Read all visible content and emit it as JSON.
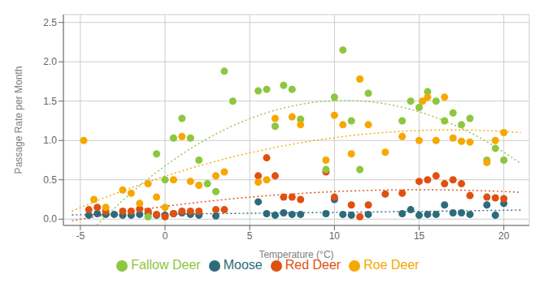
{
  "chart_data": {
    "type": "scatter",
    "title": "",
    "xlabel": "Temperature (°C)",
    "ylabel": "Passage Rate per Month",
    "xlim": [
      -6,
      21.5
    ],
    "ylim": [
      -0.08,
      2.6
    ],
    "xticks": [
      -5,
      0,
      5,
      10,
      15,
      20
    ],
    "yticks": [
      {
        "value": 0.0,
        "label": "0.0"
      },
      0.5,
      {
        "value": 1.0,
        "label": "1.0"
      },
      1.5,
      {
        "value": 2.0,
        "label": "2.0"
      },
      2.5
    ],
    "grid": true,
    "legend": "bottom",
    "trend": {
      "degree": 2,
      "x_range": [
        -5.5,
        21
      ],
      "line_style": "dotted"
    },
    "series": [
      {
        "name": "Moose",
        "color": "#2e6b7a",
        "marker": "circle",
        "x": [
          -4.5,
          -4.0,
          -3.5,
          -3.0,
          -2.5,
          -2.0,
          -1.5,
          -1.0,
          -0.5,
          0.0,
          0.5,
          1.0,
          1.5,
          2.0,
          3.0,
          5.5,
          6.0,
          6.5,
          7.0,
          7.5,
          8.0,
          9.5,
          10.0,
          10.5,
          11.0,
          12.0,
          14.0,
          14.5,
          15.0,
          15.5,
          16.0,
          16.5,
          17.0,
          17.5,
          18.0,
          19.0,
          19.5,
          20.0
        ],
        "values": [
          0.05,
          0.07,
          0.06,
          0.06,
          0.05,
          0.05,
          0.06,
          0.07,
          0.05,
          0.05,
          0.07,
          0.08,
          0.06,
          0.05,
          0.04,
          0.22,
          0.07,
          0.05,
          0.08,
          0.06,
          0.06,
          0.07,
          0.25,
          0.06,
          0.05,
          0.06,
          0.07,
          0.12,
          0.05,
          0.06,
          0.06,
          0.18,
          0.08,
          0.08,
          0.06,
          0.18,
          0.05,
          0.2
        ]
      },
      {
        "name": "Red Deer",
        "color": "#e05010",
        "marker": "circle",
        "x": [
          -4.5,
          -4.0,
          -3.5,
          -2.5,
          -2.0,
          -1.5,
          -1.0,
          -0.5,
          0.0,
          0.5,
          1.0,
          1.5,
          2.0,
          3.0,
          3.5,
          5.5,
          6.0,
          6.5,
          7.0,
          7.5,
          8.0,
          9.5,
          10.0,
          11.0,
          11.5,
          12.0,
          13.0,
          14.0,
          15.0,
          15.5,
          16.0,
          16.5,
          17.0,
          17.5,
          18.0,
          19.0,
          19.5,
          20.0
        ],
        "values": [
          0.12,
          0.15,
          0.1,
          0.1,
          0.1,
          0.13,
          0.1,
          0.06,
          0.03,
          0.07,
          0.1,
          0.1,
          0.1,
          0.12,
          0.12,
          0.55,
          0.78,
          0.55,
          0.28,
          0.28,
          0.25,
          0.6,
          0.28,
          0.18,
          0.03,
          0.18,
          0.32,
          0.33,
          0.48,
          0.5,
          0.55,
          0.45,
          0.5,
          0.45,
          0.3,
          0.28,
          0.27,
          0.26
        ]
      },
      {
        "name": "Fallow Deer",
        "color": "#8dc63f",
        "marker": "circle",
        "x": [
          -1.0,
          -0.5,
          0.0,
          0.5,
          1.0,
          1.5,
          2.0,
          2.5,
          3.0,
          3.5,
          4.0,
          5.5,
          6.0,
          6.5,
          7.0,
          7.5,
          8.0,
          9.5,
          10.0,
          10.5,
          11.0,
          11.5,
          12.0,
          14.0,
          14.5,
          15.0,
          15.5,
          16.0,
          16.5,
          17.0,
          17.5,
          18.0,
          19.0,
          19.5,
          20.0
        ],
        "values": [
          0.03,
          0.83,
          0.5,
          1.03,
          1.28,
          1.03,
          0.75,
          0.45,
          0.35,
          1.88,
          1.5,
          1.63,
          1.65,
          1.18,
          1.7,
          1.65,
          1.27,
          0.63,
          1.55,
          2.15,
          1.25,
          0.63,
          1.6,
          1.25,
          1.5,
          1.42,
          1.62,
          1.5,
          1.25,
          1.35,
          1.2,
          1.28,
          0.75,
          0.9,
          0.75
        ]
      },
      {
        "name": "Roe Deer",
        "color": "#f5a800",
        "marker": "circle",
        "x": [
          -4.8,
          -4.2,
          -3.5,
          -2.5,
          -2.0,
          -1.5,
          -1.0,
          -0.5,
          0.0,
          0.5,
          1.0,
          1.5,
          2.0,
          3.0,
          3.5,
          5.5,
          6.0,
          6.5,
          7.5,
          8.0,
          9.5,
          10.0,
          10.5,
          11.0,
          11.5,
          12.0,
          13.0,
          14.0,
          15.0,
          15.2,
          15.5,
          16.0,
          16.5,
          17.0,
          17.5,
          18.0,
          19.0,
          19.5,
          20.0
        ],
        "values": [
          1.0,
          0.25,
          0.15,
          0.37,
          0.33,
          0.2,
          0.45,
          0.28,
          0.15,
          0.5,
          1.05,
          0.48,
          0.43,
          0.55,
          0.6,
          0.47,
          0.5,
          1.28,
          1.3,
          1.2,
          0.75,
          1.32,
          1.2,
          0.83,
          1.78,
          1.2,
          0.85,
          1.05,
          1.0,
          1.5,
          1.55,
          1.0,
          1.55,
          1.03,
          0.99,
          0.98,
          0.72,
          1.0,
          1.1
        ]
      }
    ]
  }
}
